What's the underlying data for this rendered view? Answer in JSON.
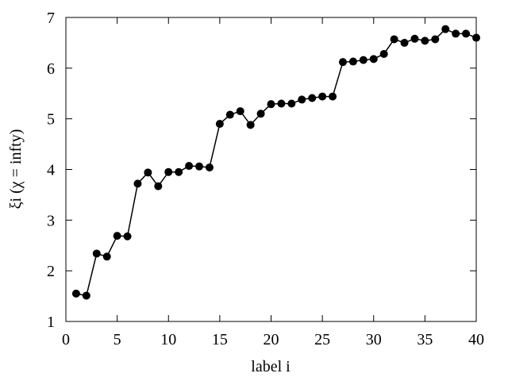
{
  "chart_data": {
    "type": "line",
    "title": "",
    "xlabel": "label i",
    "ylabel": "ξi (χ = infty)",
    "xlim": [
      0,
      40
    ],
    "ylim": [
      1,
      7
    ],
    "xticks": [
      0,
      5,
      10,
      15,
      20,
      25,
      30,
      35,
      40
    ],
    "yticks": [
      1,
      2,
      3,
      4,
      5,
      6,
      7
    ],
    "grid": false,
    "legend": "none",
    "marker": "filled-circle",
    "color": "#000000",
    "series": [
      {
        "x": [
          1,
          2,
          3,
          4,
          5,
          6,
          7,
          8,
          9,
          10,
          11,
          12,
          13,
          14,
          15,
          16,
          17,
          18,
          19,
          20,
          21,
          22,
          23,
          24,
          25,
          26,
          27,
          28,
          29,
          30,
          31,
          32,
          33,
          34,
          35,
          36,
          37,
          38,
          39,
          40
        ],
        "values": [
          1.55,
          1.51,
          2.34,
          2.28,
          2.69,
          2.68,
          3.72,
          3.94,
          3.67,
          3.95,
          3.95,
          4.07,
          4.06,
          4.04,
          4.9,
          5.08,
          5.15,
          4.88,
          5.1,
          5.29,
          5.3,
          5.3,
          5.38,
          5.41,
          5.44,
          5.44,
          6.12,
          6.13,
          6.16,
          6.18,
          6.28,
          6.57,
          6.5,
          6.58,
          6.54,
          6.57,
          6.77,
          6.68,
          6.68,
          6.6
        ]
      }
    ]
  }
}
